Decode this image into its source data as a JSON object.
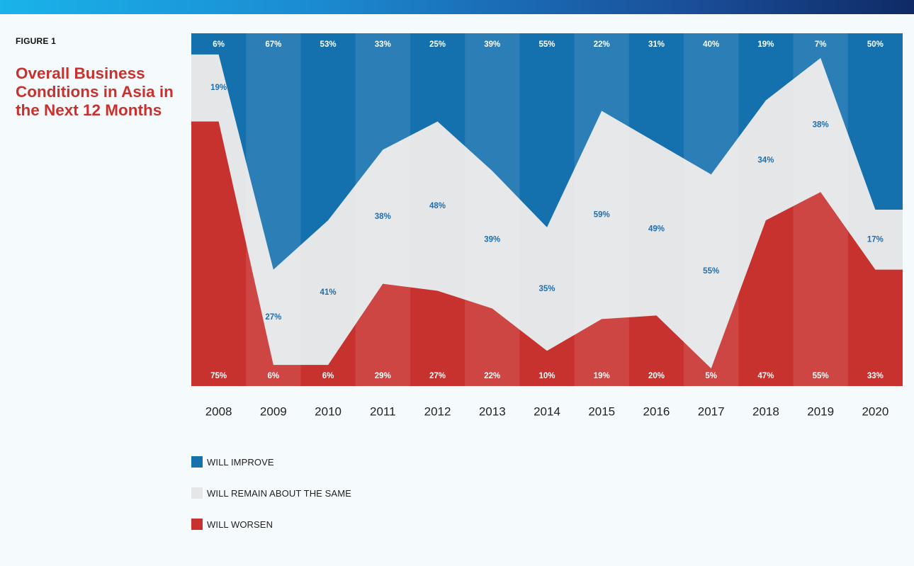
{
  "figure": {
    "label": "FIGURE 1",
    "title": "Overall Business Conditions in Asia in the Next 12 Months"
  },
  "colors": {
    "improve": "#1570ae",
    "same": "#e5e6e8",
    "worsen": "#c8322e",
    "title": "#c8322e",
    "label_improve_text": "#ffffff",
    "label_same_text": "#1e6fb0",
    "label_worsen_text": "#ffffff"
  },
  "chart_data": {
    "type": "area",
    "stacked": true,
    "percent": true,
    "categories": [
      "2008",
      "2009",
      "2010",
      "2011",
      "2012",
      "2013",
      "2014",
      "2015",
      "2016",
      "2017",
      "2018",
      "2019",
      "2020"
    ],
    "series": [
      {
        "name": "WILL IMPROVE",
        "color": "#1570ae",
        "values": [
          6,
          67,
          53,
          33,
          25,
          39,
          55,
          22,
          31,
          40,
          19,
          7,
          50
        ]
      },
      {
        "name": "WILL REMAIN ABOUT THE SAME",
        "color": "#e5e6e8",
        "values": [
          19,
          27,
          41,
          38,
          48,
          39,
          35,
          59,
          49,
          55,
          34,
          38,
          17
        ]
      },
      {
        "name": "WILL WORSEN",
        "color": "#c8322e",
        "values": [
          75,
          6,
          6,
          29,
          27,
          22,
          10,
          19,
          20,
          5,
          47,
          55,
          33
        ]
      }
    ],
    "ylim": [
      0,
      100
    ],
    "legend_position": "bottom-left"
  }
}
